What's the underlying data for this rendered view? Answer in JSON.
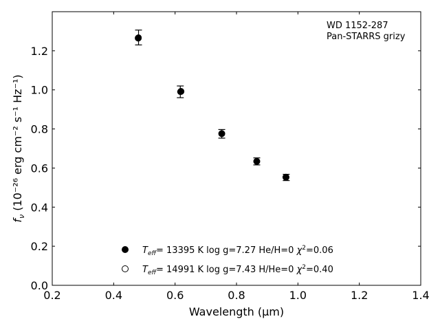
{
  "chart_data": {
    "type": "scatter",
    "xlabel": "Wavelength",
    "xlabel_unit": "(μm)",
    "ylabel_main": "f",
    "ylabel_sub": "ν",
    "ylabel_unit": "(10⁻²⁶ erg cm⁻² s⁻¹ Hz⁻¹)",
    "xlim": [
      0.2,
      1.4
    ],
    "ylim": [
      0.0,
      1.4
    ],
    "xticks": [
      "0.2",
      "0.4",
      "0.6",
      "0.8",
      "1.0",
      "1.2",
      "1.4"
    ],
    "yticks": [
      "0.0",
      "0.2",
      "0.4",
      "0.6",
      "0.8",
      "1.0",
      "1.2"
    ],
    "annotation": [
      "WD 1152-287",
      "Pan-STARRS grizy"
    ],
    "grid": false,
    "legend_position": "bottom-center",
    "series": [
      {
        "marker": "filled-circle",
        "name": "T_eff= 13395 K  log g=7.27  He/H=0  χ²=0.06",
        "legend_parts": {
          "teff": "13395 K",
          "logg": "7.27",
          "comp": "He/H=0",
          "chi2": "0.06"
        },
        "x": [
          0.48,
          0.619,
          0.752,
          0.866,
          0.961
        ],
        "y": [
          1.265,
          0.992,
          0.776,
          0.634,
          0.553
        ]
      },
      {
        "marker": "open-circle",
        "name": "T_eff= 14991 K  log g=7.43  H/He=0  χ²=0.40",
        "legend_parts": {
          "teff": "14991 K",
          "logg": "7.43",
          "comp": "H/He=0",
          "chi2": "0.40"
        },
        "x": [
          0.48,
          0.619,
          0.752,
          0.866,
          0.961
        ],
        "y": [
          1.265,
          0.992,
          0.776,
          0.634,
          0.553
        ]
      }
    ],
    "observed": {
      "name": "Pan-STARRS grizy",
      "x": [
        0.481,
        0.617,
        0.752,
        0.866,
        0.962
      ],
      "y": [
        1.268,
        0.99,
        0.775,
        0.634,
        0.552
      ],
      "yerr": [
        0.038,
        0.03,
        0.022,
        0.018,
        0.016
      ]
    }
  }
}
